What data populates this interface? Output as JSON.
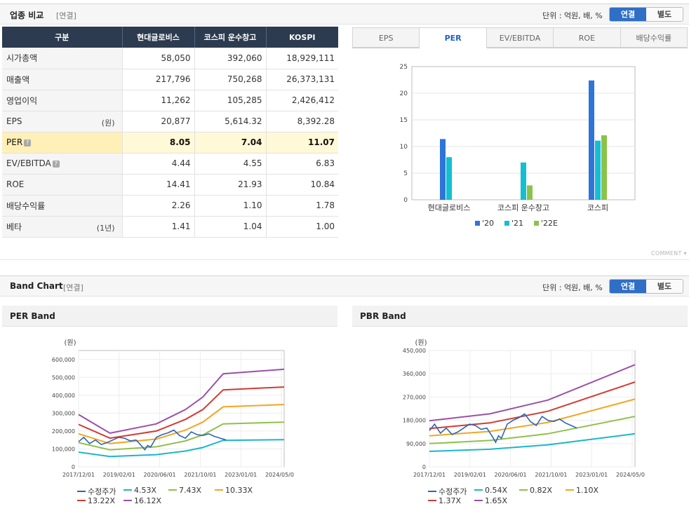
{
  "compare_header": {
    "title": "업종 비교",
    "sub": "[연결]",
    "unit": "단위 : 억원, 배, %",
    "toggle_on": "연결",
    "toggle_off": "별도"
  },
  "table": {
    "columns": [
      "구분",
      "현대글로비스",
      "코스피 운수창고",
      "KOSPI"
    ],
    "rows": [
      {
        "label": "시가총액",
        "unit": "",
        "values": [
          "58,050",
          "392,060",
          "18,929,111"
        ]
      },
      {
        "label": "매출액",
        "unit": "",
        "values": [
          "217,796",
          "750,268",
          "26,373,131"
        ]
      },
      {
        "label": "영업이익",
        "unit": "",
        "values": [
          "11,262",
          "105,285",
          "2,426,412"
        ]
      },
      {
        "label": "EPS",
        "unit": "(원)",
        "values": [
          "20,877",
          "5,614.32",
          "8,392.28"
        ]
      },
      {
        "label": "PER",
        "unit": "",
        "values": [
          "8.05",
          "7.04",
          "11.07"
        ]
      },
      {
        "label": "EV/EBITDA",
        "unit": "",
        "values": [
          "4.44",
          "4.55",
          "6.83"
        ]
      },
      {
        "label": "ROE",
        "unit": "",
        "values": [
          "14.41",
          "21.93",
          "10.84"
        ]
      },
      {
        "label": "배당수익률",
        "unit": "",
        "values": [
          "2.26",
          "1.10",
          "1.78"
        ]
      },
      {
        "label": "베타",
        "unit": "(1년)",
        "values": [
          "1.41",
          "1.04",
          "1.00"
        ]
      }
    ]
  },
  "tabs": [
    "EPS",
    "PER",
    "EV/EBITDA",
    "ROE",
    "배당수익률"
  ],
  "comment_label": "COMMENT ▾",
  "band_header": {
    "title": "Band Chart",
    "sub": "[연결]",
    "unit": "단위 : 억원, 배, %",
    "toggle_on": "연결",
    "toggle_off": "별도"
  },
  "per_band_title": "PER Band",
  "pbr_band_title": "PBR Band",
  "colors": {
    "price": "#2e64b5",
    "b1": "#1ab6cc",
    "b2": "#8fc14a",
    "b3": "#f2a623",
    "b4": "#d23b33",
    "b5": "#9c4fa8",
    "s20": "#2f74d8",
    "s21": "#14bfd0",
    "s22": "#8bc34a"
  },
  "chart_data": [
    {
      "type": "bar",
      "title": "PER",
      "categories": [
        "현대글로비스",
        "코스피 운수창고",
        "코스피"
      ],
      "series": [
        {
          "name": "'20",
          "values": [
            11.4,
            null,
            22.4
          ]
        },
        {
          "name": "'21",
          "values": [
            8.0,
            7.0,
            11.1
          ]
        },
        {
          "name": "'22E",
          "values": [
            null,
            2.7,
            12.1
          ]
        }
      ],
      "ylim": [
        0,
        25
      ],
      "yticks": [
        0,
        5,
        10,
        15,
        20,
        25
      ]
    },
    {
      "type": "line",
      "title": "PER Band",
      "unit_label": "(원)",
      "x_ticks": [
        "2017/12/01",
        "2019/02/01",
        "2020/06/01",
        "2021/10/01",
        "2023/01/01",
        "2024/05/01"
      ],
      "x_range": [
        2017.92,
        2025.0
      ],
      "ylim": [
        0,
        650000
      ],
      "yticks": [
        0,
        100000,
        200000,
        300000,
        400000,
        500000,
        600000
      ],
      "ytick_labels": [
        "0",
        "100,000",
        "200,000",
        "300,000",
        "400,000",
        "500,000",
        "600,000"
      ],
      "series": [
        {
          "name": "수정주가",
          "x": [
            2017.92,
            2018.1,
            2018.3,
            2018.5,
            2018.7,
            2018.9,
            2019.1,
            2019.3,
            2019.5,
            2019.7,
            2019.9,
            2020.1,
            2020.2,
            2020.3,
            2020.4,
            2020.6,
            2020.8,
            2021.0,
            2021.2,
            2021.4,
            2021.6,
            2021.8,
            2022.0,
            2022.2,
            2022.4,
            2022.6,
            2022.8,
            2023.0
          ],
          "values": [
            140000,
            165000,
            130000,
            150000,
            125000,
            135000,
            150000,
            165000,
            160000,
            145000,
            150000,
            115000,
            95000,
            120000,
            110000,
            165000,
            180000,
            190000,
            205000,
            175000,
            160000,
            195000,
            180000,
            175000,
            185000,
            170000,
            160000,
            150000
          ]
        },
        {
          "name": "4.53X",
          "x": [
            2017.92,
            2019.0,
            2020.6,
            2021.6,
            2022.2,
            2022.9,
            2025.0
          ],
          "values": [
            82000,
            58000,
            68000,
            88000,
            108000,
            148000,
            152000
          ]
        },
        {
          "name": "7.43X",
          "x": [
            2017.92,
            2019.0,
            2020.6,
            2021.6,
            2022.2,
            2022.9,
            2025.0
          ],
          "values": [
            135000,
            95000,
            112000,
            145000,
            178000,
            240000,
            250000
          ]
        },
        {
          "name": "10.33X",
          "x": [
            2017.92,
            2019.0,
            2020.6,
            2021.6,
            2022.2,
            2022.9,
            2025.0
          ],
          "values": [
            185000,
            130000,
            155000,
            205000,
            250000,
            335000,
            348000
          ]
        },
        {
          "name": "13.22X",
          "x": [
            2017.92,
            2019.0,
            2020.6,
            2021.6,
            2022.2,
            2022.9,
            2025.0
          ],
          "values": [
            237000,
            160000,
            200000,
            265000,
            320000,
            430000,
            446000
          ]
        },
        {
          "name": "16.12X",
          "x": [
            2017.92,
            2019.0,
            2020.6,
            2021.6,
            2022.2,
            2022.9,
            2025.0
          ],
          "values": [
            292000,
            188000,
            240000,
            320000,
            390000,
            520000,
            545000
          ]
        }
      ]
    },
    {
      "type": "line",
      "title": "PBR Band",
      "unit_label": "(원)",
      "x_ticks": [
        "2017/12/01",
        "2019/02/01",
        "2020/06/01",
        "2021/10/01",
        "2023/01/01",
        "2024/05/01"
      ],
      "x_range": [
        2017.92,
        2025.0
      ],
      "ylim": [
        0,
        450000
      ],
      "yticks": [
        0,
        90000,
        180000,
        270000,
        360000,
        450000
      ],
      "ytick_labels": [
        "0",
        "90,000",
        "180,000",
        "270,000",
        "360,000",
        "450,000"
      ],
      "series": [
        {
          "name": "수정주가",
          "x": [
            2017.92,
            2018.1,
            2018.3,
            2018.5,
            2018.7,
            2018.9,
            2019.1,
            2019.3,
            2019.5,
            2019.7,
            2019.9,
            2020.1,
            2020.2,
            2020.3,
            2020.4,
            2020.6,
            2020.8,
            2021.0,
            2021.2,
            2021.4,
            2021.6,
            2021.8,
            2022.0,
            2022.2,
            2022.4,
            2022.6,
            2022.8,
            2023.0
          ],
          "values": [
            140000,
            165000,
            130000,
            150000,
            125000,
            135000,
            150000,
            165000,
            160000,
            145000,
            150000,
            115000,
            95000,
            120000,
            110000,
            165000,
            180000,
            190000,
            205000,
            175000,
            160000,
            195000,
            180000,
            175000,
            185000,
            170000,
            160000,
            150000
          ]
        },
        {
          "name": "0.54X",
          "x": [
            2017.92,
            2020.0,
            2022.0,
            2025.0
          ],
          "values": [
            60000,
            68000,
            85000,
            128000
          ]
        },
        {
          "name": "0.82X",
          "x": [
            2017.92,
            2020.0,
            2022.0,
            2025.0
          ],
          "values": [
            90000,
            102000,
            128000,
            195000
          ]
        },
        {
          "name": "1.10X",
          "x": [
            2017.92,
            2020.0,
            2022.0,
            2025.0
          ],
          "values": [
            120000,
            137000,
            172000,
            262000
          ]
        },
        {
          "name": "1.37X",
          "x": [
            2017.92,
            2020.0,
            2022.0,
            2025.0
          ],
          "values": [
            148000,
            170000,
            215000,
            328000
          ]
        },
        {
          "name": "1.65X",
          "x": [
            2017.92,
            2020.0,
            2022.0,
            2025.0
          ],
          "values": [
            178000,
            205000,
            258000,
            395000
          ]
        }
      ]
    }
  ]
}
